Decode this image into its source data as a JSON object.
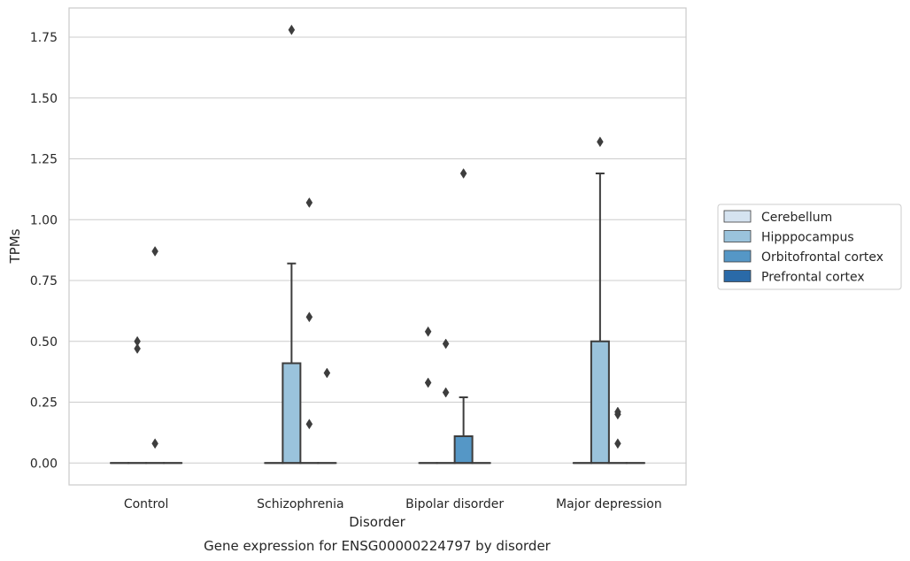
{
  "chart_data": {
    "type": "box",
    "title": "",
    "caption": "Gene expression for ENSG00000224797 by disorder",
    "xlabel": "Disorder",
    "ylabel": "TPMs",
    "ylim": [
      -0.09,
      1.87
    ],
    "yticks": [
      0.0,
      0.25,
      0.5,
      0.75,
      1.0,
      1.25,
      1.5,
      1.75
    ],
    "ytick_labels": [
      "0.00",
      "0.25",
      "0.50",
      "0.75",
      "1.00",
      "1.25",
      "1.50",
      "1.75"
    ],
    "grid": "horizontal",
    "legend_position": "right",
    "categories": [
      "Control",
      "Schizophrenia",
      "Bipolar disorder",
      "Major depression"
    ],
    "series": [
      {
        "name": "Cerebellum",
        "color": "#d5e3f0",
        "boxes": [
          {
            "q1": 0,
            "median": 0,
            "q3": 0,
            "whisker_low": 0,
            "whisker_high": 0,
            "outliers": []
          },
          {
            "q1": 0,
            "median": 0,
            "q3": 0,
            "whisker_low": 0,
            "whisker_high": 0,
            "outliers": []
          },
          {
            "q1": 0,
            "median": 0,
            "q3": 0,
            "whisker_low": 0,
            "whisker_high": 0,
            "outliers": [
              0.54,
              0.33
            ]
          },
          {
            "q1": 0,
            "median": 0,
            "q3": 0,
            "whisker_low": 0,
            "whisker_high": 0,
            "outliers": []
          }
        ]
      },
      {
        "name": "Hipppocampus",
        "color": "#9ac3dc",
        "boxes": [
          {
            "q1": 0,
            "median": 0,
            "q3": 0,
            "whisker_low": 0,
            "whisker_high": 0,
            "outliers": [
              0.5,
              0.47
            ]
          },
          {
            "q1": 0,
            "median": 0,
            "q3": 0.41,
            "whisker_low": 0,
            "whisker_high": 0.82,
            "outliers": [
              1.78
            ]
          },
          {
            "q1": 0,
            "median": 0,
            "q3": 0,
            "whisker_low": 0,
            "whisker_high": 0,
            "outliers": [
              0.49,
              0.29
            ]
          },
          {
            "q1": 0,
            "median": 0,
            "q3": 0.5,
            "whisker_low": 0,
            "whisker_high": 1.19,
            "outliers": [
              1.32
            ]
          }
        ]
      },
      {
        "name": "Orbitofrontal cortex",
        "color": "#5597c6",
        "boxes": [
          {
            "q1": 0,
            "median": 0,
            "q3": 0,
            "whisker_low": 0,
            "whisker_high": 0,
            "outliers": [
              0.87,
              0.08
            ]
          },
          {
            "q1": 0,
            "median": 0,
            "q3": 0,
            "whisker_low": 0,
            "whisker_high": 0,
            "outliers": [
              1.07,
              0.6,
              0.16
            ]
          },
          {
            "q1": 0,
            "median": 0,
            "q3": 0.11,
            "whisker_low": 0,
            "whisker_high": 0.27,
            "outliers": [
              1.19
            ]
          },
          {
            "q1": 0,
            "median": 0,
            "q3": 0,
            "whisker_low": 0,
            "whisker_high": 0,
            "outliers": [
              0.21,
              0.2,
              0.08
            ]
          }
        ]
      },
      {
        "name": "Prefrontal cortex",
        "color": "#2a6aa8",
        "boxes": [
          {
            "q1": 0,
            "median": 0,
            "q3": 0,
            "whisker_low": 0,
            "whisker_high": 0,
            "outliers": []
          },
          {
            "q1": 0,
            "median": 0,
            "q3": 0,
            "whisker_low": 0,
            "whisker_high": 0,
            "outliers": [
              0.37
            ]
          },
          {
            "q1": 0,
            "median": 0,
            "q3": 0,
            "whisker_low": 0,
            "whisker_high": 0,
            "outliers": []
          },
          {
            "q1": 0,
            "median": 0,
            "q3": 0,
            "whisker_low": 0,
            "whisker_high": 0,
            "outliers": []
          }
        ]
      }
    ]
  }
}
